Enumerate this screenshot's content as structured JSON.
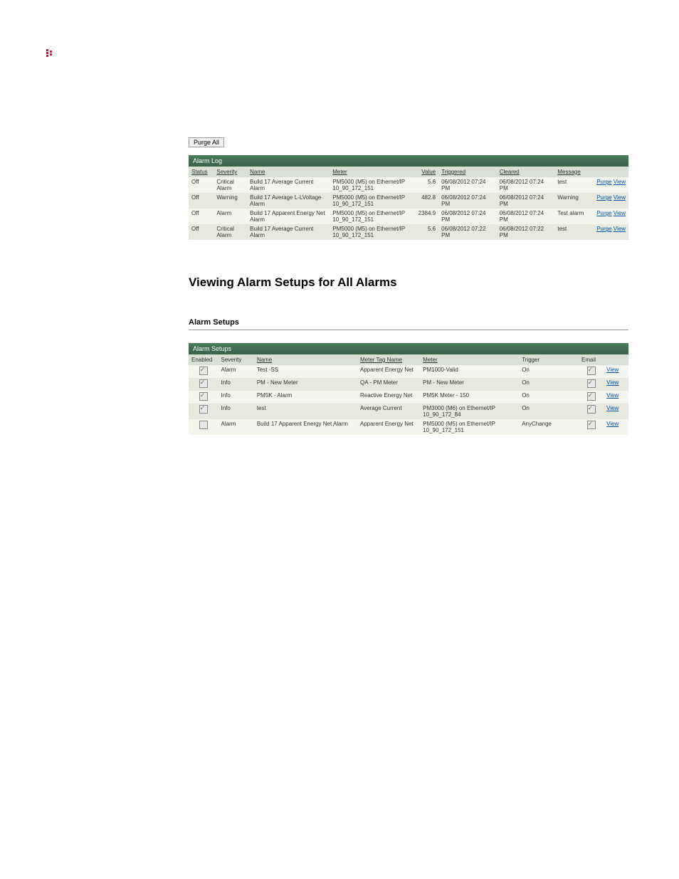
{
  "icon_colors": {
    "primary": "#c41e3a",
    "bg": "#ffffff"
  },
  "purge_all_label": "Purge All",
  "alarm_log": {
    "title": "Alarm Log",
    "headers": {
      "status": "Status",
      "severity": "Severity",
      "name": "Name",
      "meter": "Meter",
      "value": "Value",
      "triggered": "Triggered",
      "cleared": "Cleared",
      "message": "Message"
    },
    "action_labels": {
      "purge": "Purge",
      "view": "View"
    },
    "rows": [
      {
        "status": "Off",
        "severity": "Critical Alarm",
        "name": "Build 17 Average Current Alarm",
        "meter": "PM5000 (M5) on Ethernet/IP 10_90_172_151",
        "value": "5.6",
        "triggered": "06/08/2012 07:24 PM",
        "cleared": "06/08/2012 07:24 PM",
        "message": "test"
      },
      {
        "status": "Off",
        "severity": "Warning",
        "name": "Build 17 Average L-LVoltage Alarm",
        "meter": "PM5000 (M5) on Ethernet/IP 10_90_172_151",
        "value": "482.8",
        "triggered": "06/08/2012 07:24 PM",
        "cleared": "06/08/2012 07:24 PM",
        "message": "Warning"
      },
      {
        "status": "Off",
        "severity": "Alarm",
        "name": "Build 17 Apparent Energy Net Alarm",
        "meter": "PM5000 (M5) on Ethernet/IP 10_90_172_151",
        "value": "2384.9",
        "triggered": "06/08/2012 07:24 PM",
        "cleared": "06/08/2012 07:24 PM",
        "message": "Test alarm"
      },
      {
        "status": "Off",
        "severity": "Critical Alarm",
        "name": "Build 17 Average Current Alarm",
        "meter": "PM5000 (M5) on Ethernet/IP 10_90_172_151",
        "value": "5.6",
        "triggered": "06/08/2012 07:22 PM",
        "cleared": "06/08/2012 07:22 PM",
        "message": "test"
      }
    ]
  },
  "section_heading": "Viewing Alarm Setups for All Alarms",
  "alarm_setups": {
    "title_outer": "Alarm Setups",
    "title_bar": "Alarm Setups",
    "headers": {
      "enabled": "Enabled",
      "severity": "Severity",
      "name": "Name",
      "meter_tag": "Meter Tag Name",
      "meter": "Meter",
      "trigger": "Trigger",
      "email": "Email"
    },
    "view_label": "View",
    "rows": [
      {
        "enabled": true,
        "severity": "Alarm",
        "name": "Test -SS",
        "meter_tag": "Apparent Energy Net",
        "meter": "PM1000-Valid",
        "trigger": "On",
        "email": true
      },
      {
        "enabled": true,
        "severity": "Info",
        "name": "PM - New Meter",
        "meter_tag": "QA - PM Meter",
        "meter": "PM - New Meter",
        "trigger": "On",
        "email": true
      },
      {
        "enabled": true,
        "severity": "Info",
        "name": "PM5K - Alarm",
        "meter_tag": "Reactive Energy Net",
        "meter": "PM5K Meter - 150",
        "trigger": "On",
        "email": true
      },
      {
        "enabled": true,
        "severity": "Info",
        "name": "test",
        "meter_tag": "Average Current",
        "meter": "PM3000 (M6) on Ethernet/IP 10_90_172_84",
        "trigger": "On",
        "email": true
      },
      {
        "enabled": false,
        "severity": "Alarm",
        "name": "Build 17 Apparent Energy Net Alarm",
        "meter_tag": "Apparent Energy Net",
        "meter": "PM5000 (M5) on Ethernet/IP 10_90_172_151",
        "trigger": "AnyChange",
        "email": true
      }
    ]
  }
}
